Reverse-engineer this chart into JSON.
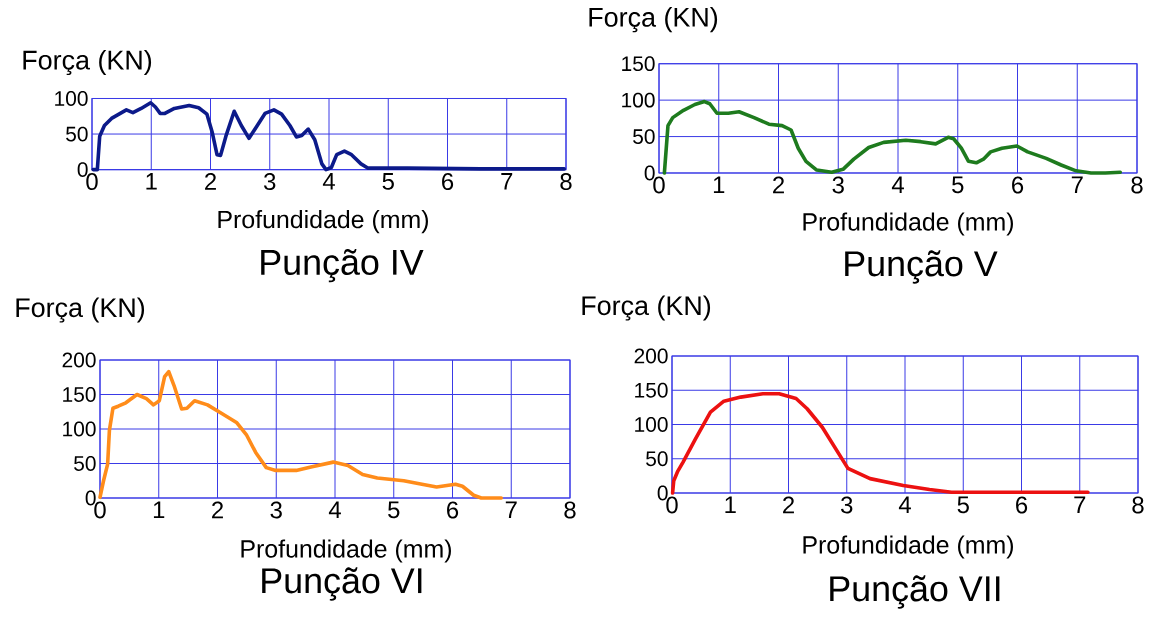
{
  "chart_data": [
    {
      "type": "line",
      "title": "Punção IV",
      "xlabel": "Profundidade (mm)",
      "ylabel": "Força (KN)",
      "xlim": [
        0,
        8
      ],
      "ylim": [
        0,
        100
      ],
      "xticks": [
        0,
        1,
        2,
        3,
        4,
        5,
        6,
        7,
        8
      ],
      "yticks": [
        0,
        50,
        100
      ],
      "grid": true,
      "line_style": "solid",
      "series": [
        {
          "color": "#0c1a8a",
          "x": [
            0.02,
            0.09,
            0.13,
            0.21,
            0.33,
            0.58,
            0.69,
            0.83,
            0.99,
            1.07,
            1.15,
            1.23,
            1.39,
            1.64,
            1.8,
            1.94,
            2.03,
            2.11,
            2.17,
            2.26,
            2.4,
            2.52,
            2.65,
            2.79,
            2.92,
            3.07,
            3.2,
            3.34,
            3.45,
            3.54,
            3.65,
            3.76,
            3.88,
            3.95,
            4.04,
            4.13,
            4.26,
            4.38,
            4.54,
            4.66,
            5.32,
            6.56,
            7.97
          ],
          "values": [
            0,
            0,
            47,
            62,
            72,
            84,
            80,
            86,
            94,
            88,
            79,
            79,
            86,
            90,
            87,
            78,
            52,
            21,
            20,
            47,
            82,
            62,
            44,
            62,
            79,
            84,
            78,
            62,
            46,
            48,
            57,
            42,
            8,
            0,
            3,
            21,
            26,
            21,
            8,
            2,
            2,
            1,
            1
          ]
        }
      ]
    },
    {
      "type": "line",
      "title": "Punção V",
      "xlabel": "Profundidade (mm)",
      "ylabel": "Força (KN)",
      "xlim": [
        0,
        8
      ],
      "ylim": [
        0,
        150
      ],
      "xticks": [
        0,
        1,
        2,
        3,
        4,
        5,
        6,
        7,
        8
      ],
      "yticks": [
        0,
        50,
        100,
        150
      ],
      "grid": true,
      "line_style": "solid",
      "series": [
        {
          "color": "#1e7b1e",
          "x": [
            0.09,
            0.15,
            0.23,
            0.41,
            0.6,
            0.76,
            0.85,
            0.97,
            1.16,
            1.34,
            1.59,
            1.84,
            2.06,
            2.21,
            2.33,
            2.46,
            2.64,
            2.89,
            3.08,
            3.26,
            3.51,
            3.76,
            4.13,
            4.38,
            4.63,
            4.84,
            4.93,
            5.06,
            5.18,
            5.31,
            5.43,
            5.55,
            5.74,
            5.99,
            6.17,
            6.48,
            6.73,
            6.98,
            7.23,
            7.47,
            7.72
          ],
          "values": [
            0,
            65,
            76,
            86,
            94,
            98,
            95,
            82,
            82,
            84,
            76,
            67,
            65,
            59,
            34,
            16,
            4,
            1,
            5,
            19,
            35,
            42,
            45,
            43,
            40,
            49,
            47,
            34,
            16,
            14,
            19,
            29,
            34,
            37,
            29,
            20,
            11,
            3,
            0,
            0,
            1
          ]
        }
      ]
    },
    {
      "type": "line",
      "title": "Punção VI",
      "xlabel": "Profundidade (mm)",
      "ylabel": "Força (KN)",
      "xlim": [
        0,
        8
      ],
      "ylim": [
        0,
        200
      ],
      "xticks": [
        0,
        1,
        2,
        3,
        4,
        5,
        6,
        7,
        8
      ],
      "yticks": [
        0,
        50,
        100,
        150,
        200
      ],
      "grid": true,
      "line_style": "solid",
      "series": [
        {
          "color": "#ff8c1a",
          "x": [
            0,
            0.06,
            0.13,
            0.16,
            0.22,
            0.31,
            0.44,
            0.63,
            0.79,
            0.91,
            1.01,
            1.1,
            1.17,
            1.26,
            1.39,
            1.48,
            1.61,
            1.83,
            2.08,
            2.33,
            2.49,
            2.65,
            2.83,
            2.99,
            3.34,
            3.59,
            3.97,
            4.22,
            4.47,
            4.72,
            5.17,
            5.48,
            5.73,
            6.05,
            6.17,
            6.36,
            6.49,
            6.83
          ],
          "values": [
            1,
            25,
            49,
            98,
            130,
            133,
            138,
            150,
            144,
            135,
            141,
            176,
            183,
            163,
            129,
            130,
            141,
            135,
            122,
            109,
            92,
            66,
            44,
            40,
            40,
            45,
            52,
            47,
            34,
            29,
            25,
            20,
            16,
            20,
            17,
            4,
            0,
            0
          ]
        }
      ]
    },
    {
      "type": "line",
      "title": "Punção VII",
      "xlabel": "Profundidade (mm)",
      "ylabel": "Força (KN)",
      "xlim": [
        0,
        8
      ],
      "ylim": [
        0,
        200
      ],
      "xticks": [
        0,
        1,
        2,
        3,
        4,
        5,
        6,
        7,
        8
      ],
      "yticks": [
        0,
        50,
        100,
        150,
        200
      ],
      "grid": true,
      "line_style": "solid",
      "series": [
        {
          "color": "#ec1111",
          "x": [
            0.01,
            0.03,
            0.1,
            0.19,
            0.41,
            0.66,
            0.89,
            1.18,
            1.56,
            1.84,
            2.13,
            2.32,
            2.58,
            3.02,
            3.4,
            3.97,
            4.42,
            4.8,
            7.14
          ],
          "values": [
            0,
            18,
            32,
            45,
            80,
            118,
            134,
            140,
            145,
            145,
            138,
            123,
            96,
            36,
            21,
            11,
            5,
            1,
            1
          ]
        }
      ]
    }
  ]
}
